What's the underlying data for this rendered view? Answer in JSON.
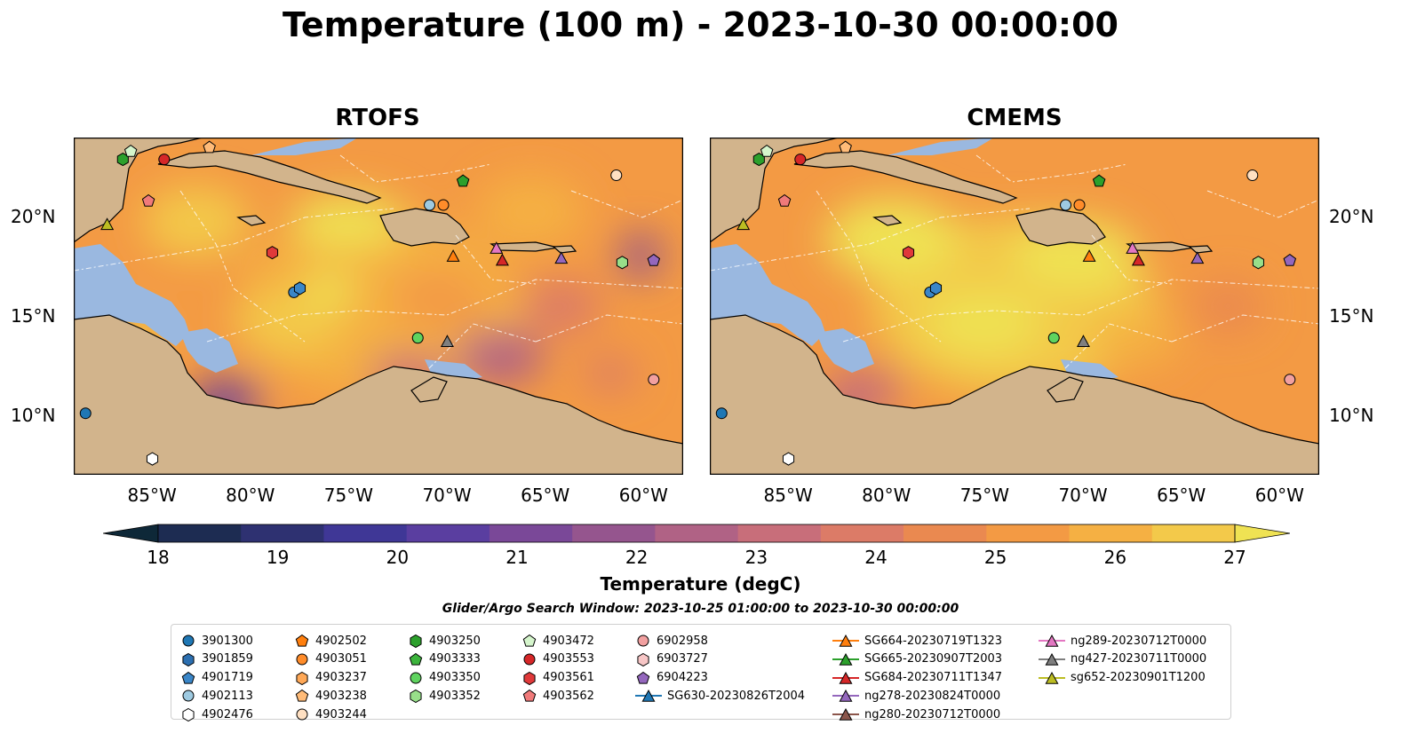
{
  "title": "Temperature (100 m) - 2023-10-30 00:00:00",
  "panels": [
    {
      "title": "RTOFS"
    },
    {
      "title": "CMEMS"
    }
  ],
  "map": {
    "lon_range": [
      -89,
      -58
    ],
    "lat_range": [
      7,
      24
    ],
    "lon_ticks": [
      "85°W",
      "80°W",
      "75°W",
      "70°W",
      "65°W",
      "60°W"
    ],
    "lat_ticks": [
      "20°N",
      "15°N",
      "10°N"
    ],
    "colors": {
      "ocean_shelf": "#9ab8e0",
      "land": "#d2b48c",
      "deep_dark": "#0b2233"
    }
  },
  "colorbar": {
    "label": "Temperature (degC)",
    "min": 18,
    "max": 27,
    "ticks": [
      "18",
      "19",
      "20",
      "21",
      "22",
      "23",
      "24",
      "25",
      "26",
      "27"
    ],
    "colors": [
      "#0e2838",
      "#1d2c52",
      "#2e3171",
      "#3f3796",
      "#5a3ea0",
      "#7a4898",
      "#95558e",
      "#b06285",
      "#c86e7a",
      "#dc7b67",
      "#ea8950",
      "#f39a44",
      "#f5b043",
      "#f3c94a",
      "#efe253"
    ]
  },
  "search_window": "Glider/Argo Search Window: 2023-10-25 01:00:00 to 2023-10-30 00:00:00",
  "legend": {
    "items": [
      {
        "label": "3901300",
        "marker": "circle",
        "color": "#1f77b4"
      },
      {
        "label": "3901859",
        "marker": "hexagon",
        "color": "#2c6fb0"
      },
      {
        "label": "4901719",
        "marker": "pentagon",
        "color": "#3a86c8"
      },
      {
        "label": "4902113",
        "marker": "circle",
        "color": "#9ecae1"
      },
      {
        "label": "4902476",
        "marker": "hexagon",
        "color": "#ffffff"
      },
      {
        "label": "4902502",
        "marker": "pentagon",
        "color": "#ff7f0e"
      },
      {
        "label": "4903051",
        "marker": "circle",
        "color": "#ff8c2a"
      },
      {
        "label": "4903237",
        "marker": "hexagon",
        "color": "#ffa857"
      },
      {
        "label": "4903238",
        "marker": "pentagon",
        "color": "#ffbb78"
      },
      {
        "label": "4903244",
        "marker": "circle",
        "color": "#ffe0c2"
      },
      {
        "label": "4903250",
        "marker": "hexagon",
        "color": "#2ca02c"
      },
      {
        "label": "4903333",
        "marker": "pentagon",
        "color": "#3cb43c"
      },
      {
        "label": "4903350",
        "marker": "circle",
        "color": "#5fd35f"
      },
      {
        "label": "4903352",
        "marker": "hexagon",
        "color": "#98df8a"
      },
      {
        "label": "4903472",
        "marker": "pentagon",
        "color": "#d5f5cc"
      },
      {
        "label": "4903553",
        "marker": "circle",
        "color": "#d62728"
      },
      {
        "label": "4903561",
        "marker": "hexagon",
        "color": "#e0393a"
      },
      {
        "label": "4903562",
        "marker": "pentagon",
        "color": "#f07a7a"
      },
      {
        "label": "6902958",
        "marker": "circle",
        "color": "#f2a0a0"
      },
      {
        "label": "6903727",
        "marker": "hexagon",
        "color": "#f7c6c6"
      },
      {
        "label": "6904223",
        "marker": "pentagon",
        "color": "#9467bd"
      },
      {
        "label": "SG630-20230826T2004",
        "marker": "triangle-line",
        "color": "#1f77b4"
      },
      {
        "label": "SG664-20230719T1323",
        "marker": "triangle-line",
        "color": "#ff7f0e"
      },
      {
        "label": "SG665-20230907T2003",
        "marker": "triangle-line",
        "color": "#2ca02c"
      },
      {
        "label": "SG684-20230711T1347",
        "marker": "triangle-line",
        "color": "#d62728"
      },
      {
        "label": "ng278-20230824T0000",
        "marker": "triangle-line",
        "color": "#9467bd"
      },
      {
        "label": "ng280-20230712T0000",
        "marker": "triangle-line",
        "color": "#8c564b"
      },
      {
        "label": "ng289-20230712T0000",
        "marker": "triangle-line",
        "color": "#e377c2"
      },
      {
        "label": "ng427-20230711T0000",
        "marker": "triangle-line",
        "color": "#7f7f7f"
      },
      {
        "label": "sg652-20230901T1200",
        "marker": "triangle-line",
        "color": "#bcbd22"
      }
    ]
  }
}
